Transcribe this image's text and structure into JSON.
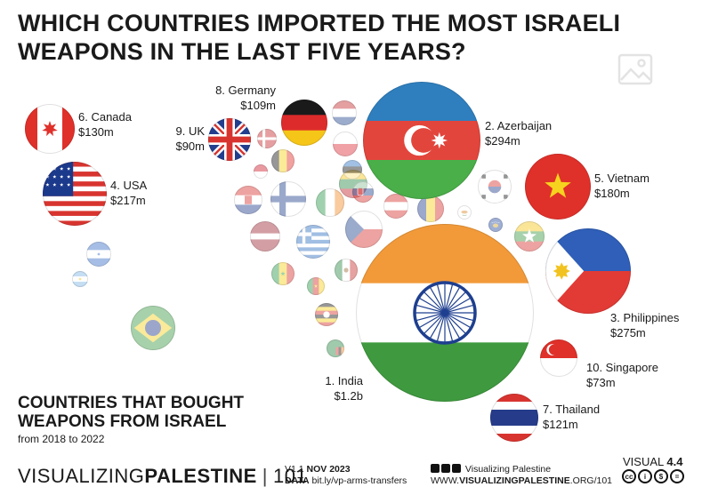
{
  "title": "WHICH COUNTRIES IMPORTED THE MOST ISRAELI\nWEAPONS IN THE LAST FIVE YEARS?",
  "subtitle_bold": "COUNTRIES THAT BOUGHT\nWEAPONS FROM ISRAEL",
  "subtitle_range": "from 2018 to 2022",
  "footer": {
    "brand_light": "VISUALIZING",
    "brand_bold": "PALESTINE",
    "brand_sep": "|",
    "brand_number": "101",
    "version_label": "V1.1",
    "version_date": "NOV 2023",
    "data_label": "DATA",
    "data_url": "bit.ly/vp-arms-transfers",
    "social_name": "Visualizing Palestine",
    "website_prefix": "WWW.",
    "website_bold": "VISUALIZINGPALESTINE",
    "website_suffix": ".ORG/101",
    "visual_label": "VISUAL",
    "visual_number": "4.4",
    "license_icons": [
      "cc-icon",
      "by-icon",
      "nc-icon",
      "nd-icon"
    ]
  },
  "chart_data": {
    "type": "bubble",
    "unit": "USD",
    "labeled": [
      {
        "rank": 1,
        "label": "1. India",
        "value_label": "$1.2b",
        "value": 1200,
        "flag": "india"
      },
      {
        "rank": 2,
        "label": "2. Azerbaijan",
        "value_label": "$294m",
        "value": 294,
        "flag": "azerbaijan"
      },
      {
        "rank": 3,
        "label": "3. Philippines",
        "value_label": "$275m",
        "value": 275,
        "flag": "philippines"
      },
      {
        "rank": 4,
        "label": "4. USA",
        "value_label": "$217m",
        "value": 217,
        "flag": "usa"
      },
      {
        "rank": 5,
        "label": "5. Vietnam",
        "value_label": "$180m",
        "value": 180,
        "flag": "vietnam"
      },
      {
        "rank": 6,
        "label": "6. Canada",
        "value_label": "$130m",
        "value": 130,
        "flag": "canada"
      },
      {
        "rank": 7,
        "label": "7. Thailand",
        "value_label": "$121m",
        "value": 121,
        "flag": "thailand"
      },
      {
        "rank": 8,
        "label": "8. Germany",
        "value_label": "$109m",
        "value": 109,
        "flag": "germany"
      },
      {
        "rank": 9,
        "label": "9. UK",
        "value_label": "$90m",
        "value": 90,
        "flag": "uk"
      },
      {
        "rank": 10,
        "label": "10. Singapore",
        "value_label": "$73m",
        "value": 73,
        "flag": "singapore"
      }
    ],
    "unlabeled_flags": [
      "brazil",
      "honduras",
      "argentina",
      "croatia",
      "denmark",
      "netherlands",
      "belgium",
      "lithuania",
      "poland",
      "monaco",
      "estonia",
      "finland",
      "romania",
      "ireland",
      "latvia",
      "greece",
      "czechia",
      "slovakia",
      "austria",
      "south-korea",
      "myanmar",
      "senegal",
      "cameroon",
      "mexico",
      "uganda",
      "zambia",
      "cyprus",
      "kosovo"
    ]
  },
  "colors": {
    "india_saffron": "#f29a39",
    "india_green": "#3f9a3f",
    "india_chakra": "#1e3f8f",
    "azerbaijan_blue": "#2f7fbe",
    "azerbaijan_red": "#e2453c",
    "azerbaijan_green": "#4aae49",
    "red": "#e12f2f",
    "blue_dark": "#1c3a8c",
    "text": "#1a1a1a"
  }
}
